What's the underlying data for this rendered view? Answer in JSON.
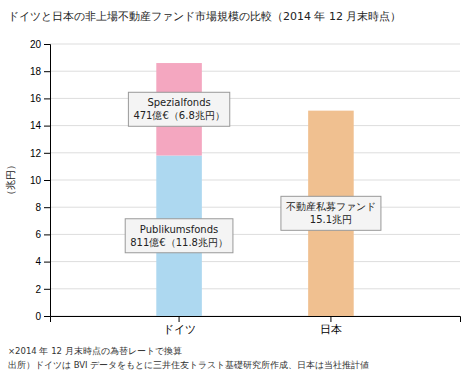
{
  "chart_data": {
    "type": "bar",
    "stacked": true,
    "title": "ドイツと日本の非上場不動産ファンド市場規模の比較（2014 年 12 月末時点）",
    "y_label": "（兆円）",
    "categories": [
      "ドイツ",
      "日本"
    ],
    "series": [
      {
        "color": "#add8f0",
        "values": [
          11.8,
          null
        ]
      },
      {
        "color": "#f4a7c0",
        "values": [
          6.8,
          null
        ]
      },
      {
        "color": "#f0c090",
        "values": [
          null,
          15.1
        ]
      }
    ],
    "annotations": [
      {
        "lines": [
          "Publikumsfonds",
          "811億€（11.8兆円）"
        ]
      },
      {
        "lines": [
          "Spezialfonds",
          "471億€（6.8兆円）"
        ]
      },
      {
        "lines": [
          "不動産私募ファンド",
          "15.1兆円"
        ]
      }
    ],
    "footnotes": [
      "×2014 年 12 月末時点の為替レートで換算",
      "出所）ドイツは BVI データをもとに三井住友トラスト基礎研究所作成、日本は当社推計値"
    ],
    "ylim": [
      0,
      20
    ],
    "yticks": [
      0,
      2,
      4,
      6,
      8,
      10,
      12,
      14,
      16,
      18,
      20
    ],
    "grid": true
  }
}
